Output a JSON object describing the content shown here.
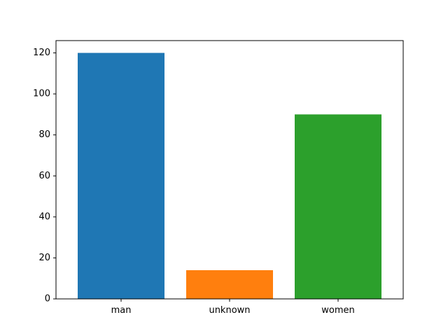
{
  "chart_data": {
    "type": "bar",
    "categories": [
      "man",
      "unknown",
      "women"
    ],
    "values": [
      120,
      14,
      90
    ],
    "colors": [
      "#1f77b4",
      "#ff7f0e",
      "#2ca02c"
    ],
    "yticks": [
      0,
      20,
      40,
      60,
      80,
      100,
      120
    ],
    "ylim": [
      0,
      126
    ],
    "title": "",
    "xlabel": "",
    "ylabel": "",
    "grid": false,
    "legend": false
  }
}
